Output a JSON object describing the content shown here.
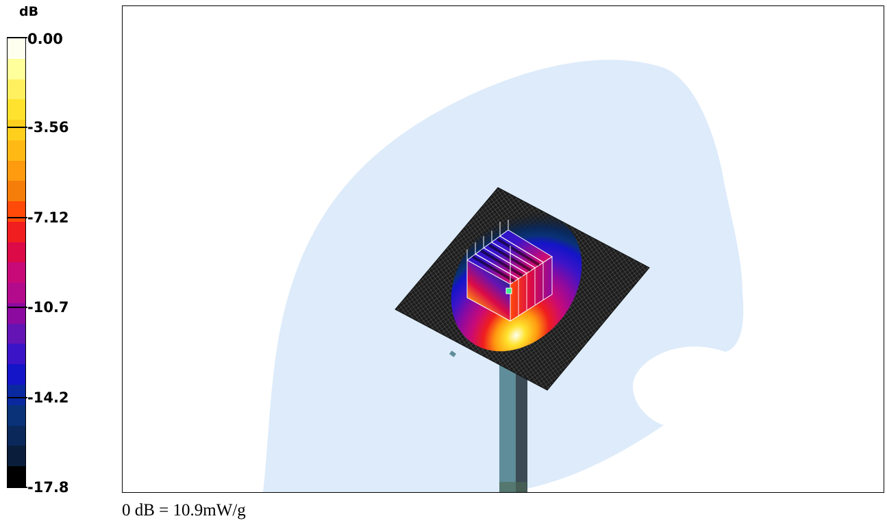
{
  "chart_data": {
    "type": "heatmap",
    "colorbar": {
      "unit": "dB",
      "tick_labels": [
        "0.00",
        "-3.56",
        "-7.12",
        "-10.7",
        "-14.2",
        "-17.8"
      ],
      "min": -17.8,
      "max": 0.0,
      "colors": [
        "#fffff0",
        "#ffff9b",
        "#fff060",
        "#ffe22e",
        "#ffcf1e",
        "#ffb914",
        "#ff9b0f",
        "#f57d0a",
        "#ff4a0a",
        "#f01e1e",
        "#dc0a46",
        "#c80a78",
        "#b40a8c",
        "#8c0aa0",
        "#6414b4",
        "#3c14c8",
        "#1414c8",
        "#0a28a0",
        "#0a3278",
        "#0a285a",
        "#0a1e3c",
        "#000000"
      ]
    },
    "reference": "0 dB = 10.9mW/g"
  }
}
